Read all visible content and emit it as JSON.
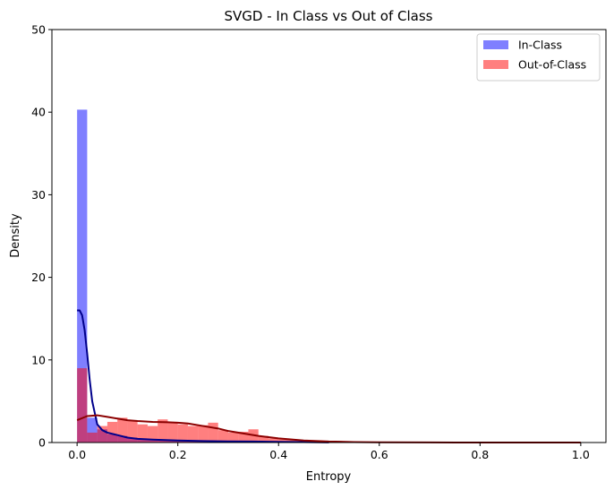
{
  "chart_data": {
    "type": "bar",
    "title": "SVGD - In Class vs Out of Class",
    "xlabel": "Entropy",
    "ylabel": "Density",
    "xlim": [
      -0.05,
      1.05
    ],
    "ylim": [
      0,
      50
    ],
    "xticks": [
      "0.0",
      "0.2",
      "0.4",
      "0.6",
      "0.8",
      "1.0"
    ],
    "yticks": [
      "0",
      "10",
      "20",
      "30",
      "40",
      "50"
    ],
    "grid": false,
    "legend_position": "top-right",
    "bin_width": 0.02,
    "series": [
      {
        "name": "In-Class",
        "kind": "histogram",
        "color": "#0000ff",
        "alpha": 0.5,
        "bin_starts": [
          0.0,
          0.02,
          0.04,
          0.06,
          0.08,
          0.1,
          0.12,
          0.14,
          0.16,
          0.18,
          0.2,
          0.22,
          0.24,
          0.26,
          0.28,
          0.3,
          0.32,
          0.34,
          0.36,
          0.38,
          0.4,
          0.42,
          0.44
        ],
        "values": [
          40.3,
          3.0,
          1.6,
          1.0,
          0.8,
          0.6,
          0.5,
          0.4,
          0.35,
          0.3,
          0.25,
          0.2,
          0.2,
          0.15,
          0.15,
          0.1,
          0.1,
          0.1,
          0.1,
          0.08,
          0.08,
          0.05,
          0.05
        ]
      },
      {
        "name": "Out-of-Class",
        "kind": "histogram",
        "color": "#ff0000",
        "alpha": 0.5,
        "bin_starts": [
          0.0,
          0.02,
          0.04,
          0.06,
          0.08,
          0.1,
          0.12,
          0.14,
          0.16,
          0.18,
          0.2,
          0.22,
          0.24,
          0.26,
          0.28,
          0.3,
          0.32,
          0.34,
          0.36,
          0.38,
          0.4,
          0.42,
          0.44,
          0.46,
          0.48,
          0.5
        ],
        "values": [
          9.0,
          1.2,
          2.0,
          2.5,
          3.0,
          2.6,
          2.2,
          2.0,
          2.8,
          2.4,
          2.2,
          2.0,
          2.1,
          2.4,
          1.5,
          1.2,
          1.3,
          1.6,
          0.8,
          0.5,
          0.4,
          0.3,
          0.25,
          0.2,
          0.15,
          0.1
        ]
      },
      {
        "name": "In-Class KDE",
        "kind": "line",
        "color": "#00008b",
        "x": [
          0.0,
          0.005,
          0.01,
          0.015,
          0.02,
          0.025,
          0.03,
          0.04,
          0.05,
          0.06,
          0.08,
          0.1,
          0.12,
          0.15,
          0.2,
          0.25,
          0.3,
          0.35,
          0.4,
          0.45,
          0.5
        ],
        "y": [
          16.0,
          16.0,
          15.4,
          13.6,
          10.8,
          7.6,
          5.0,
          2.2,
          1.5,
          1.2,
          0.9,
          0.6,
          0.45,
          0.35,
          0.25,
          0.18,
          0.14,
          0.12,
          0.08,
          0.05,
          0.02
        ]
      },
      {
        "name": "Out-of-Class KDE",
        "kind": "line",
        "color": "#8b0000",
        "x": [
          0.0,
          0.02,
          0.04,
          0.06,
          0.08,
          0.1,
          0.12,
          0.15,
          0.18,
          0.2,
          0.22,
          0.25,
          0.28,
          0.3,
          0.33,
          0.36,
          0.4,
          0.45,
          0.5,
          0.55,
          0.6,
          0.7,
          0.8,
          0.9,
          1.0
        ],
        "y": [
          2.7,
          3.2,
          3.3,
          3.1,
          2.9,
          2.7,
          2.6,
          2.5,
          2.45,
          2.4,
          2.3,
          2.0,
          1.7,
          1.4,
          1.1,
          0.8,
          0.5,
          0.25,
          0.12,
          0.06,
          0.03,
          0.01,
          0.0,
          0.0,
          0.0
        ]
      }
    ]
  }
}
